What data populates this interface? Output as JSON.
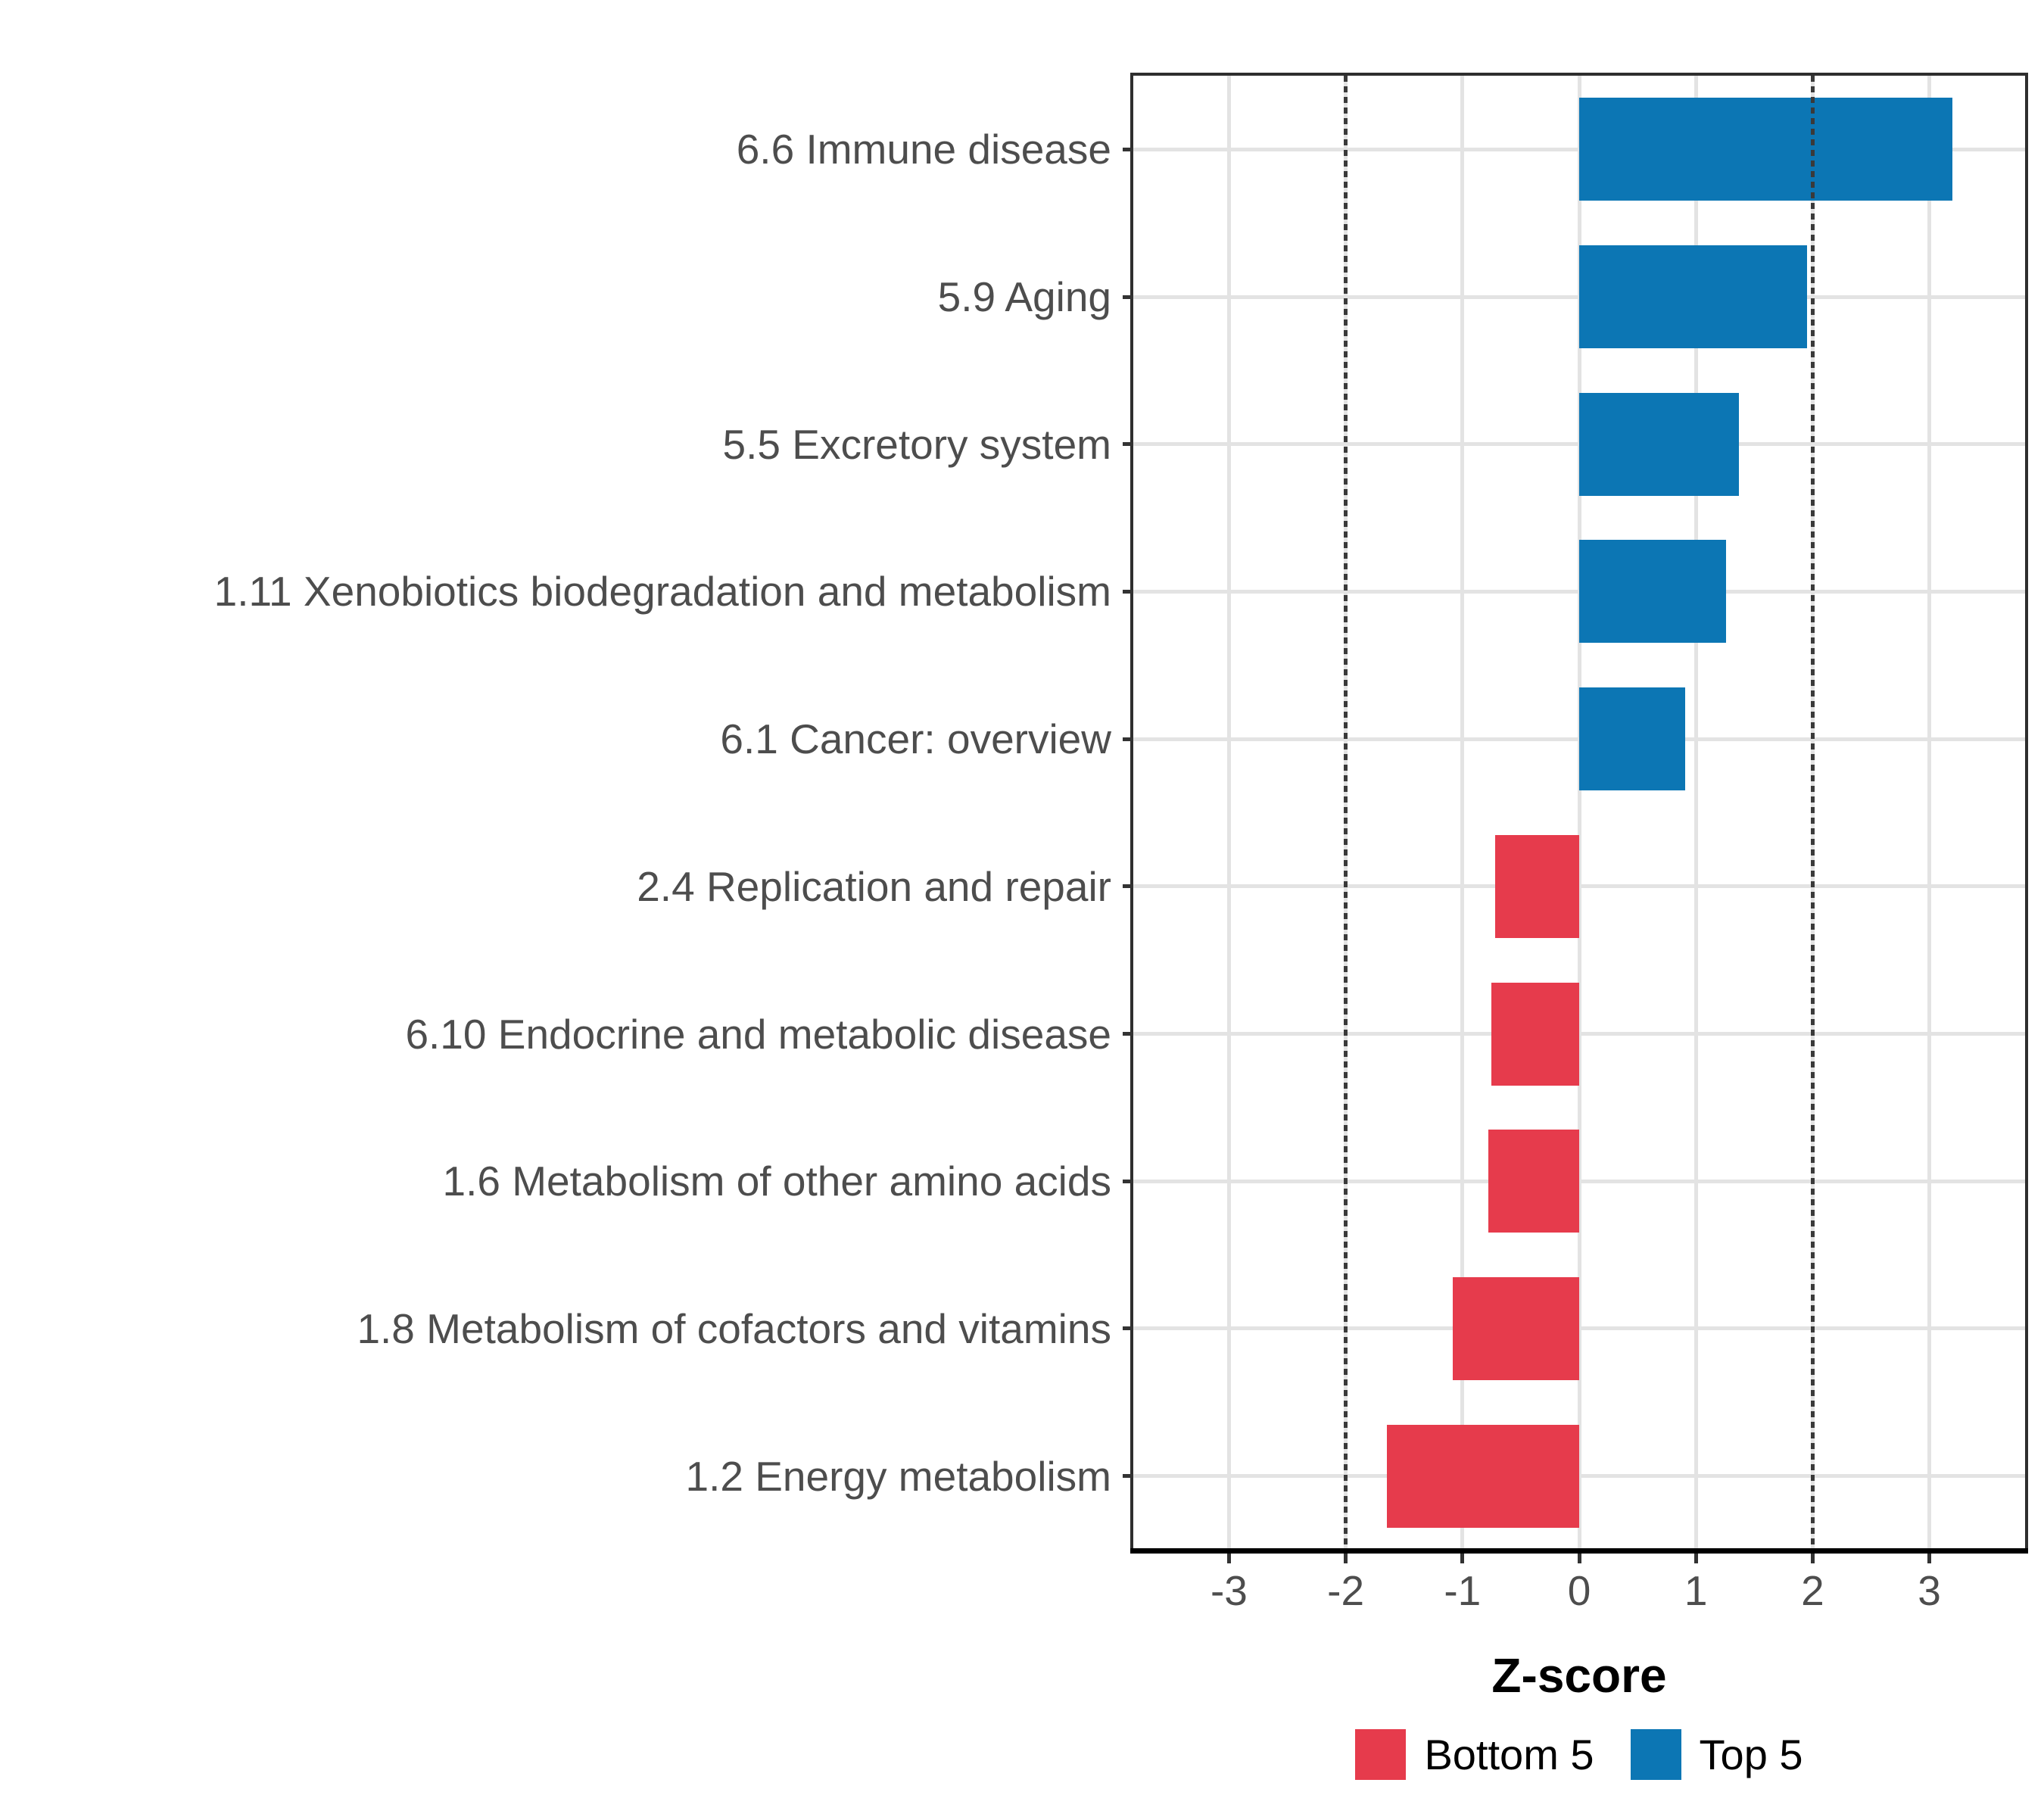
{
  "figure": {
    "background": "#FFFFFF"
  },
  "chart_data": {
    "type": "bar",
    "orientation": "horizontal",
    "title": "",
    "xlabel": "Z-score",
    "ylabel": "",
    "x_ticks": [
      "-3",
      "-2",
      "-1",
      "0",
      "1",
      "2",
      "3"
    ],
    "x_tick_values": [
      -3,
      -2,
      -1,
      0,
      1,
      2,
      3
    ],
    "xlim": [
      -3.82,
      3.82
    ],
    "grid": true,
    "reference_lines": [
      -2,
      2
    ],
    "legend_position": "bottom",
    "bars": [
      {
        "category": "6.6 Immune disease",
        "value": 3.2,
        "group": "Top 5"
      },
      {
        "category": "5.9 Aging",
        "value": 1.95,
        "group": "Top 5"
      },
      {
        "category": "5.5 Excretory system",
        "value": 1.37,
        "group": "Top 5"
      },
      {
        "category": "1.11 Xenobiotics biodegradation and metabolism",
        "value": 1.26,
        "group": "Top 5"
      },
      {
        "category": "6.1 Cancer: overview",
        "value": 0.91,
        "group": "Top 5"
      },
      {
        "category": "2.4 Replication and repair",
        "value": -0.72,
        "group": "Bottom 5"
      },
      {
        "category": "6.10 Endocrine and metabolic disease",
        "value": -0.75,
        "group": "Bottom 5"
      },
      {
        "category": "1.6 Metabolism of other amino acids",
        "value": -0.78,
        "group": "Bottom 5"
      },
      {
        "category": "1.8 Metabolism of cofactors and vitamins",
        "value": -1.08,
        "group": "Bottom 5"
      },
      {
        "category": "1.2 Energy metabolism",
        "value": -1.65,
        "group": "Bottom 5"
      }
    ],
    "legend": [
      {
        "label": "Bottom 5",
        "color": "#E63B4C"
      },
      {
        "label": "Top 5",
        "color": "#0C76B4"
      }
    ],
    "colors": {
      "top5": "#0C76B4",
      "bottom5": "#E63B4C",
      "gridline": "#E3E3E3",
      "axis_text": "#4D4D4D",
      "axis_line": "#000000",
      "panel_border": "#2E2E2E",
      "reference_line": "#3A3A3A"
    }
  }
}
